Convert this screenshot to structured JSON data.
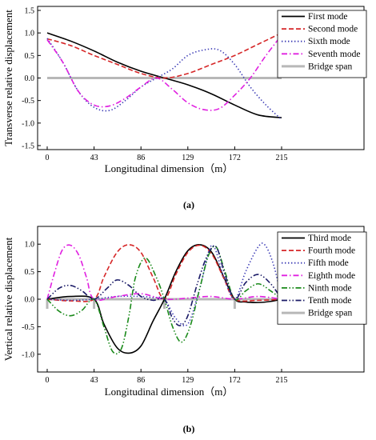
{
  "chart_data": [
    {
      "type": "line",
      "caption": "(a)",
      "xlabel": "Longitudinal dimension（m）",
      "ylabel": "Transverse relative displacement",
      "xlim": [
        0,
        215
      ],
      "ylim": [
        -1.5,
        1.5
      ],
      "xticks": [
        0,
        43,
        86,
        129,
        172,
        215
      ],
      "xtick_labels": [
        "0",
        "43",
        "86",
        "129",
        "172",
        "215"
      ],
      "yticks": [
        -1.5,
        -1.0,
        -0.5,
        0.0,
        0.5,
        1.0,
        1.5
      ],
      "ytick_labels": [
        "-1.5",
        "-1.0",
        "-0.5",
        "0.0",
        "0.5",
        "1.0",
        "1.5"
      ],
      "legend_position": "top-right",
      "series": [
        {
          "name": "First mode",
          "color": "#000000",
          "dash": "solid",
          "x": [
            0,
            21.5,
            43,
            64.5,
            86,
            107.5,
            129,
            150.5,
            172,
            193.5,
            215
          ],
          "y": [
            1.0,
            0.82,
            0.6,
            0.35,
            0.15,
            0.0,
            -0.15,
            -0.35,
            -0.6,
            -0.82,
            -0.88
          ]
        },
        {
          "name": "Second mode",
          "color": "#d62728",
          "dash": "dashed",
          "x": [
            0,
            21.5,
            43,
            64.5,
            86,
            107.5,
            129,
            150.5,
            172,
            193.5,
            215
          ],
          "y": [
            0.87,
            0.72,
            0.5,
            0.3,
            0.1,
            0.0,
            0.1,
            0.3,
            0.5,
            0.75,
            1.0
          ]
        },
        {
          "name": "Sixth mode",
          "color": "#3a3ab5",
          "dash": "dotted",
          "x": [
            0,
            14.3,
            28.7,
            43,
            57.3,
            71.7,
            86,
            100.3,
            114.7,
            129,
            143.3,
            157.7,
            172,
            186.3,
            200.7,
            215
          ],
          "y": [
            0.88,
            0.35,
            -0.3,
            -0.65,
            -0.72,
            -0.5,
            -0.2,
            0.0,
            0.2,
            0.5,
            0.62,
            0.62,
            0.3,
            -0.2,
            -0.6,
            -0.92
          ]
        },
        {
          "name": "Seventh mode",
          "color": "#e020e0",
          "dash": "dashdot",
          "x": [
            0,
            14.3,
            28.7,
            43,
            57.3,
            71.7,
            86,
            100.3,
            114.7,
            129,
            143.3,
            157.7,
            172,
            186.3,
            200.7,
            215
          ],
          "y": [
            0.85,
            0.35,
            -0.3,
            -0.6,
            -0.62,
            -0.45,
            -0.2,
            0.0,
            -0.25,
            -0.55,
            -0.7,
            -0.68,
            -0.38,
            0.0,
            0.5,
            0.95
          ]
        },
        {
          "name": "Bridge span",
          "color": "#b8b8b8",
          "dash": "solid",
          "thick": true,
          "x": [
            0,
            215
          ],
          "y": [
            0,
            0
          ]
        }
      ]
    },
    {
      "type": "line",
      "caption": "(b)",
      "xlabel": "Longitudinal dimension（m）",
      "ylabel": "Vertical relative displacement",
      "xlim": [
        0,
        215
      ],
      "ylim": [
        -1.25,
        1.25
      ],
      "xticks": [
        0,
        43,
        86,
        129,
        172,
        215
      ],
      "xtick_labels": [
        "0",
        "43",
        "86",
        "129",
        "172",
        "215"
      ],
      "yticks": [
        -1.0,
        -0.5,
        0.0,
        0.5,
        1.0
      ],
      "ytick_labels": [
        "-1.0",
        "-0.5",
        "0.0",
        "0.5",
        "1.0"
      ],
      "legend_position": "top-right",
      "supports": [
        0,
        43,
        107.5,
        172,
        215
      ],
      "series": [
        {
          "name": "Third mode",
          "color": "#000000",
          "dash": "solid",
          "x": [
            0,
            21.5,
            43,
            52,
            64,
            75,
            86,
            97,
            107.5,
            118,
            129,
            140,
            151,
            162,
            172,
            182,
            193.5,
            205,
            215
          ],
          "y": [
            0.0,
            0.05,
            0.0,
            -0.45,
            -0.88,
            -0.98,
            -0.85,
            -0.4,
            0.0,
            0.5,
            0.88,
            0.99,
            0.85,
            0.4,
            0.0,
            -0.05,
            -0.06,
            -0.04,
            0.0
          ]
        },
        {
          "name": "Fourth mode",
          "color": "#d62728",
          "dash": "dashed",
          "x": [
            0,
            21.5,
            43,
            52,
            64,
            75,
            86,
            97,
            107.5,
            118,
            129,
            140,
            151,
            162,
            172,
            193.5,
            215
          ],
          "y": [
            0.0,
            -0.03,
            0.0,
            0.4,
            0.85,
            0.99,
            0.85,
            0.4,
            0.0,
            0.45,
            0.85,
            0.98,
            0.82,
            0.38,
            0.0,
            -0.02,
            0.0
          ]
        },
        {
          "name": "Fifth mode",
          "color": "#3a3ab5",
          "dash": "dotted",
          "x": [
            0,
            21.5,
            43,
            64,
            86,
            97,
            107.5,
            118,
            129,
            140,
            151,
            162,
            172,
            182,
            193.5,
            200,
            208,
            215
          ],
          "y": [
            0.0,
            -0.02,
            0.0,
            0.05,
            0.05,
            0.03,
            0.0,
            -0.35,
            -0.45,
            0.2,
            0.98,
            0.4,
            0.0,
            0.5,
            0.95,
            0.98,
            0.6,
            0.0
          ]
        },
        {
          "name": "Eighth mode",
          "color": "#e020e0",
          "dash": "dashdot",
          "x": [
            0,
            7,
            14,
            21.5,
            29,
            36,
            43,
            64,
            86,
            107.5,
            129,
            150,
            172,
            193.5,
            215
          ],
          "y": [
            0.0,
            0.5,
            0.9,
            0.98,
            0.8,
            0.4,
            0.0,
            0.05,
            0.1,
            0.0,
            0.02,
            0.05,
            0.0,
            0.05,
            0.0
          ]
        },
        {
          "name": "Ninth mode",
          "color": "#1a8a1a",
          "dash": "dashdotdot",
          "x": [
            0,
            11,
            21.5,
            32,
            43,
            52,
            60,
            68,
            75,
            81,
            90,
            100,
            107.5,
            115,
            123,
            131,
            140,
            148,
            155,
            163,
            172,
            182,
            193.5,
            205,
            215
          ],
          "y": [
            0.0,
            -0.22,
            -0.3,
            -0.2,
            0.0,
            -0.5,
            -0.95,
            -0.9,
            -0.3,
            0.4,
            0.75,
            0.4,
            0.0,
            -0.5,
            -0.78,
            -0.5,
            0.2,
            0.8,
            0.95,
            0.5,
            0.0,
            0.15,
            0.28,
            0.15,
            0.0
          ]
        },
        {
          "name": "Tenth mode",
          "color": "#1a1a66",
          "dash": "dashdotdot",
          "x": [
            0,
            11,
            21.5,
            32,
            43,
            55,
            64,
            75,
            86,
            97,
            107.5,
            115,
            122,
            129,
            138,
            147,
            155,
            163,
            172,
            182,
            193.5,
            205,
            215
          ],
          "y": [
            0.0,
            0.2,
            0.25,
            0.15,
            0.0,
            0.2,
            0.35,
            0.25,
            0.05,
            -0.02,
            0.0,
            -0.35,
            -0.48,
            -0.3,
            0.3,
            0.8,
            0.95,
            0.45,
            0.0,
            0.3,
            0.45,
            0.28,
            0.0
          ]
        },
        {
          "name": "Bridge span",
          "color": "#b8b8b8",
          "dash": "solid",
          "thick": true,
          "x": [
            0,
            215
          ],
          "y": [
            0,
            0
          ]
        }
      ]
    }
  ]
}
